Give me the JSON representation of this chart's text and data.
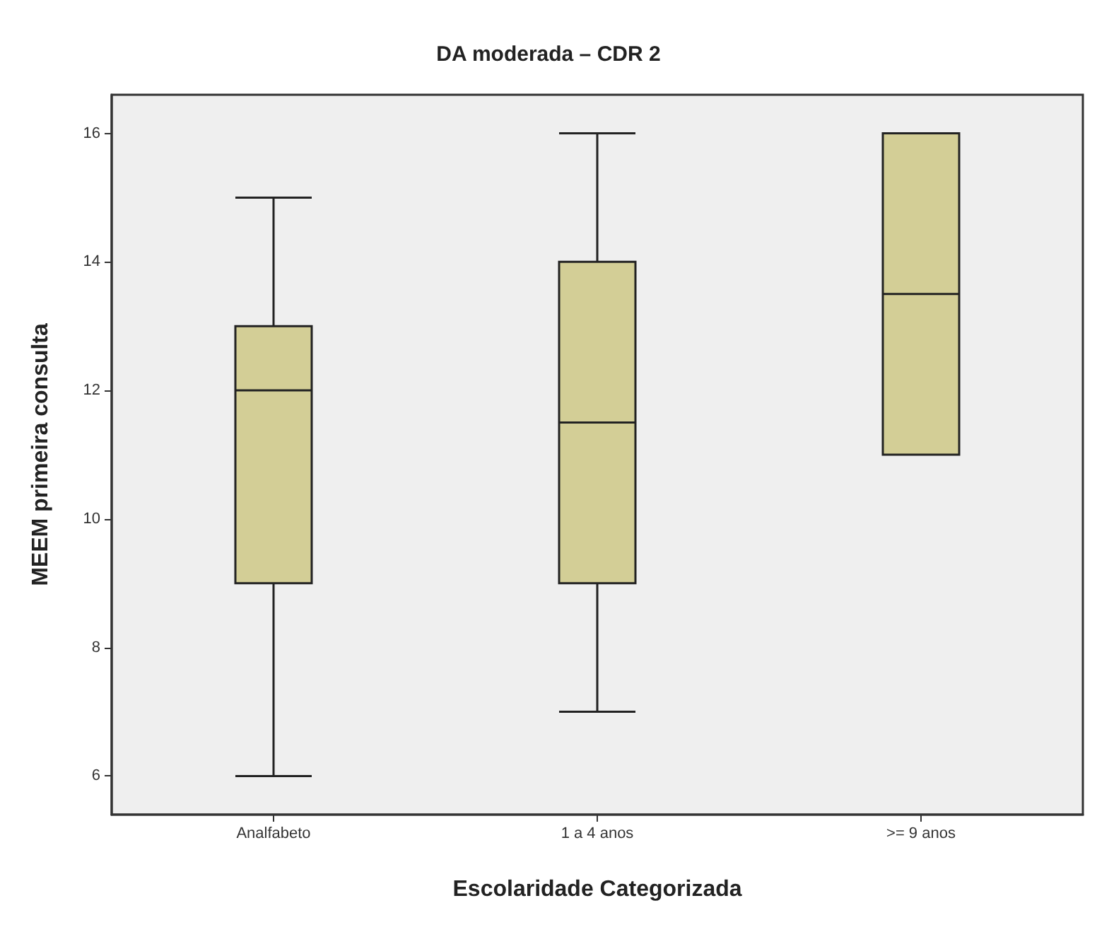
{
  "chart_data": {
    "type": "box",
    "title": "DA moderada – CDR 2",
    "xlabel": "Escolaridade Categorizada",
    "ylabel": "MEEM primeira consulta",
    "categories": [
      "Analfabeto",
      "1 a 4 anos",
      ">= 9 anos"
    ],
    "boxes": [
      {
        "low": 6,
        "q1": 9,
        "median": 12,
        "q3": 13,
        "high": 15
      },
      {
        "low": 7,
        "q1": 9,
        "median": 11.5,
        "q3": 14,
        "high": 16
      },
      {
        "low": 11,
        "q1": 11,
        "median": 13.5,
        "q3": 16,
        "high": 16
      }
    ],
    "color": "#d3ce96",
    "ylim": [
      5.4,
      16.6
    ],
    "yticks": [
      6,
      8,
      10,
      12,
      14,
      16
    ],
    "grid": false
  }
}
